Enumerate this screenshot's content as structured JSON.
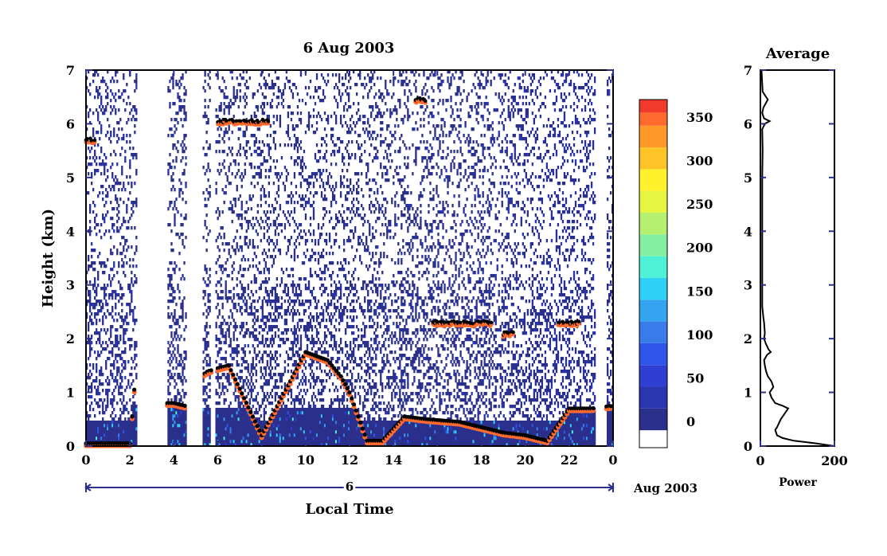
{
  "chart_data": [
    {
      "type": "heatmap",
      "title": "6 Aug 2003",
      "xlabel": "Local Time",
      "ylabel": "Height (km)",
      "x_ticks": [
        "0",
        "2",
        "4",
        "6",
        "8",
        "10",
        "12",
        "14",
        "16",
        "18",
        "20",
        "22",
        "0"
      ],
      "xlim": [
        0,
        24
      ],
      "y_ticks": [
        "0",
        "1",
        "2",
        "3",
        "4",
        "5",
        "6",
        "7"
      ],
      "ylim": [
        0,
        7
      ],
      "date_axis": {
        "day_label": "6",
        "month_label": "Aug 2003"
      },
      "colorbar": {
        "tick_labels": [
          "0",
          "50",
          "100",
          "150",
          "200",
          "250",
          "300",
          "350"
        ],
        "range": [
          0,
          380
        ],
        "bands": [
          {
            "min": -20,
            "color": "#ffffff"
          },
          {
            "min": 0,
            "color": "#2a2f8c"
          },
          {
            "min": 25,
            "color": "#2b35b0"
          },
          {
            "min": 50,
            "color": "#2f3fd4"
          },
          {
            "min": 75,
            "color": "#2f55e8"
          },
          {
            "min": 100,
            "color": "#3a7bea"
          },
          {
            "min": 125,
            "color": "#34a3f0"
          },
          {
            "min": 150,
            "color": "#2fd0f5"
          },
          {
            "min": 175,
            "color": "#4ef0d6"
          },
          {
            "min": 200,
            "color": "#82f0a0"
          },
          {
            "min": 225,
            "color": "#b6f070"
          },
          {
            "min": 250,
            "color": "#e6f541"
          },
          {
            "min": 275,
            "color": "#fff22c"
          },
          {
            "min": 300,
            "color": "#ffc428"
          },
          {
            "min": 325,
            "color": "#ff9a2a"
          },
          {
            "min": 350,
            "color": "#ff6a2e"
          },
          {
            "min": 365,
            "color": "#f23a2c"
          }
        ]
      },
      "features": {
        "boundary_layer_top_km": [
          [
            0.0,
            0.05
          ],
          [
            1.0,
            0.05
          ],
          [
            2.0,
            0.05
          ],
          [
            2.2,
            1.05
          ],
          [
            2.6,
            0.95
          ],
          [
            3.0,
            0.85
          ],
          [
            3.5,
            0.8
          ],
          [
            4.0,
            0.8
          ],
          [
            4.5,
            0.75
          ],
          [
            4.9,
            1.25
          ],
          [
            5.2,
            1.3
          ],
          [
            5.6,
            1.4
          ],
          [
            6.0,
            1.45
          ],
          [
            6.5,
            1.5
          ],
          [
            8.0,
            0.2
          ],
          [
            10.0,
            1.75
          ],
          [
            11.0,
            1.6
          ],
          [
            11.6,
            1.3
          ],
          [
            12.0,
            1.0
          ],
          [
            12.8,
            0.1
          ],
          [
            13.5,
            0.1
          ],
          [
            14.5,
            0.55
          ],
          [
            15.5,
            0.5
          ],
          [
            17.0,
            0.45
          ],
          [
            18.0,
            0.35
          ],
          [
            19.0,
            0.25
          ],
          [
            20.0,
            0.2
          ],
          [
            21.0,
            0.1
          ],
          [
            22.0,
            0.7
          ],
          [
            23.0,
            0.7
          ],
          [
            24.0,
            0.75
          ]
        ],
        "cloud_layers": [
          {
            "t": [
              0.0,
              0.4
            ],
            "h_km": 5.7
          },
          {
            "t": [
              6.0,
              8.3
            ],
            "h_km": 6.05
          },
          {
            "t": [
              15.0,
              15.5
            ],
            "h_km": 6.45
          },
          {
            "t": [
              15.8,
              18.5
            ],
            "h_km": 2.3
          },
          {
            "t": [
              19.0,
              19.5
            ],
            "h_km": 2.1
          },
          {
            "t": [
              21.5,
              22.5
            ],
            "h_km": 2.3
          }
        ],
        "data_gaps_hours": [
          [
            2.3,
            3.7
          ],
          [
            4.6,
            5.3
          ],
          [
            5.7,
            5.9
          ],
          [
            23.2,
            23.7
          ]
        ]
      }
    },
    {
      "type": "line",
      "title": "Average",
      "xlabel": "Power",
      "ylabel": "",
      "x_ticks": [
        "0",
        "200"
      ],
      "xlim": [
        0,
        200
      ],
      "y_ticks": [
        "0",
        "1",
        "2",
        "3",
        "4",
        "5",
        "6",
        "7"
      ],
      "ylim": [
        0,
        7
      ],
      "series": [
        {
          "x": [
            200,
            150,
            90,
            60,
            45,
            40,
            45,
            55,
            75,
            60,
            40,
            30,
            25,
            35,
            30,
            20,
            15,
            12,
            10,
            18,
            28,
            22,
            15,
            10,
            12,
            10,
            8,
            5,
            5,
            5,
            5,
            5,
            5,
            6,
            5,
            12,
            25,
            10,
            5,
            8,
            20,
            6,
            3
          ],
          "y": [
            0.0,
            0.05,
            0.1,
            0.15,
            0.2,
            0.3,
            0.35,
            0.5,
            0.7,
            0.75,
            0.8,
            0.9,
            1.0,
            1.1,
            1.2,
            1.3,
            1.4,
            1.5,
            1.6,
            1.7,
            1.75,
            1.8,
            1.9,
            2.0,
            2.1,
            2.3,
            2.4,
            2.6,
            3.0,
            3.5,
            4.0,
            4.5,
            5.0,
            5.5,
            5.9,
            6.0,
            6.05,
            6.1,
            6.2,
            6.3,
            6.45,
            6.6,
            7.0
          ]
        }
      ]
    }
  ]
}
